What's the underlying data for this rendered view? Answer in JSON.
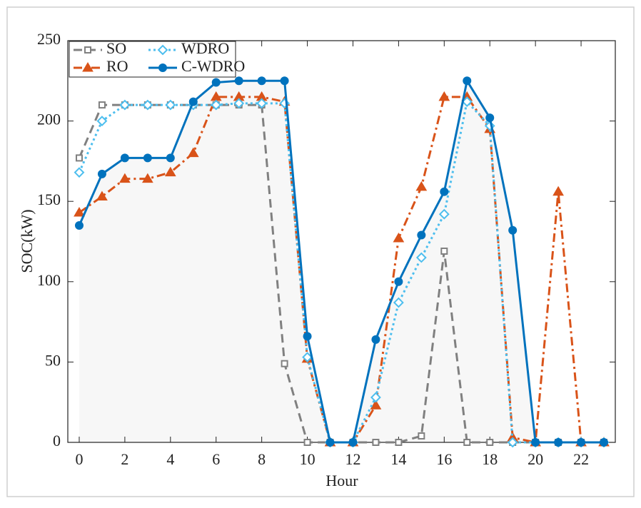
{
  "chart_data": {
    "type": "line",
    "xlabel": "Hour",
    "ylabel": "SOC(kW)",
    "x": [
      0,
      1,
      2,
      3,
      4,
      5,
      6,
      7,
      8,
      9,
      10,
      11,
      12,
      13,
      14,
      15,
      16,
      17,
      18,
      19,
      20,
      21,
      22,
      23
    ],
    "xlim": [
      -0.5,
      23.5
    ],
    "xticks": [
      0,
      2,
      4,
      6,
      8,
      10,
      12,
      14,
      16,
      18,
      20,
      22
    ],
    "ylim": [
      0,
      250
    ],
    "yticks": [
      0,
      50,
      100,
      150,
      200,
      250
    ],
    "legend": "upper left",
    "fill_under": "C-WDRO",
    "fill_color": "#f7f7f7",
    "series": [
      {
        "name": "SO",
        "color": "#808080",
        "linestyle": "dashed",
        "marker": "square",
        "values": [
          177,
          210,
          210,
          210,
          210,
          210,
          210,
          210,
          210,
          49,
          0,
          0,
          0,
          0,
          0,
          4,
          119,
          0,
          0,
          0,
          0,
          0,
          0,
          0
        ]
      },
      {
        "name": "RO",
        "color": "#d95319",
        "linestyle": "dashdot",
        "marker": "triangle",
        "values": [
          143,
          153,
          164,
          164,
          168,
          180,
          215,
          215,
          215,
          212,
          52,
          0,
          0,
          23,
          127,
          159,
          215,
          215,
          195,
          3,
          0,
          156,
          0,
          0
        ]
      },
      {
        "name": "WDRO",
        "color": "#4dbeee",
        "linestyle": "dotted",
        "marker": "diamond",
        "values": [
          168,
          200,
          210,
          210,
          210,
          210,
          210,
          211,
          211,
          211,
          53,
          0,
          0,
          28,
          87,
          115,
          142,
          212,
          197,
          0,
          0,
          0,
          0,
          0
        ]
      },
      {
        "name": "C-WDRO",
        "color": "#0072bd",
        "linestyle": "solid",
        "marker": "circle",
        "values": [
          135,
          167,
          177,
          177,
          177,
          212,
          224,
          225,
          225,
          225,
          66,
          0,
          0,
          64,
          100,
          129,
          156,
          225,
          202,
          132,
          0,
          0,
          0,
          0
        ]
      }
    ]
  }
}
